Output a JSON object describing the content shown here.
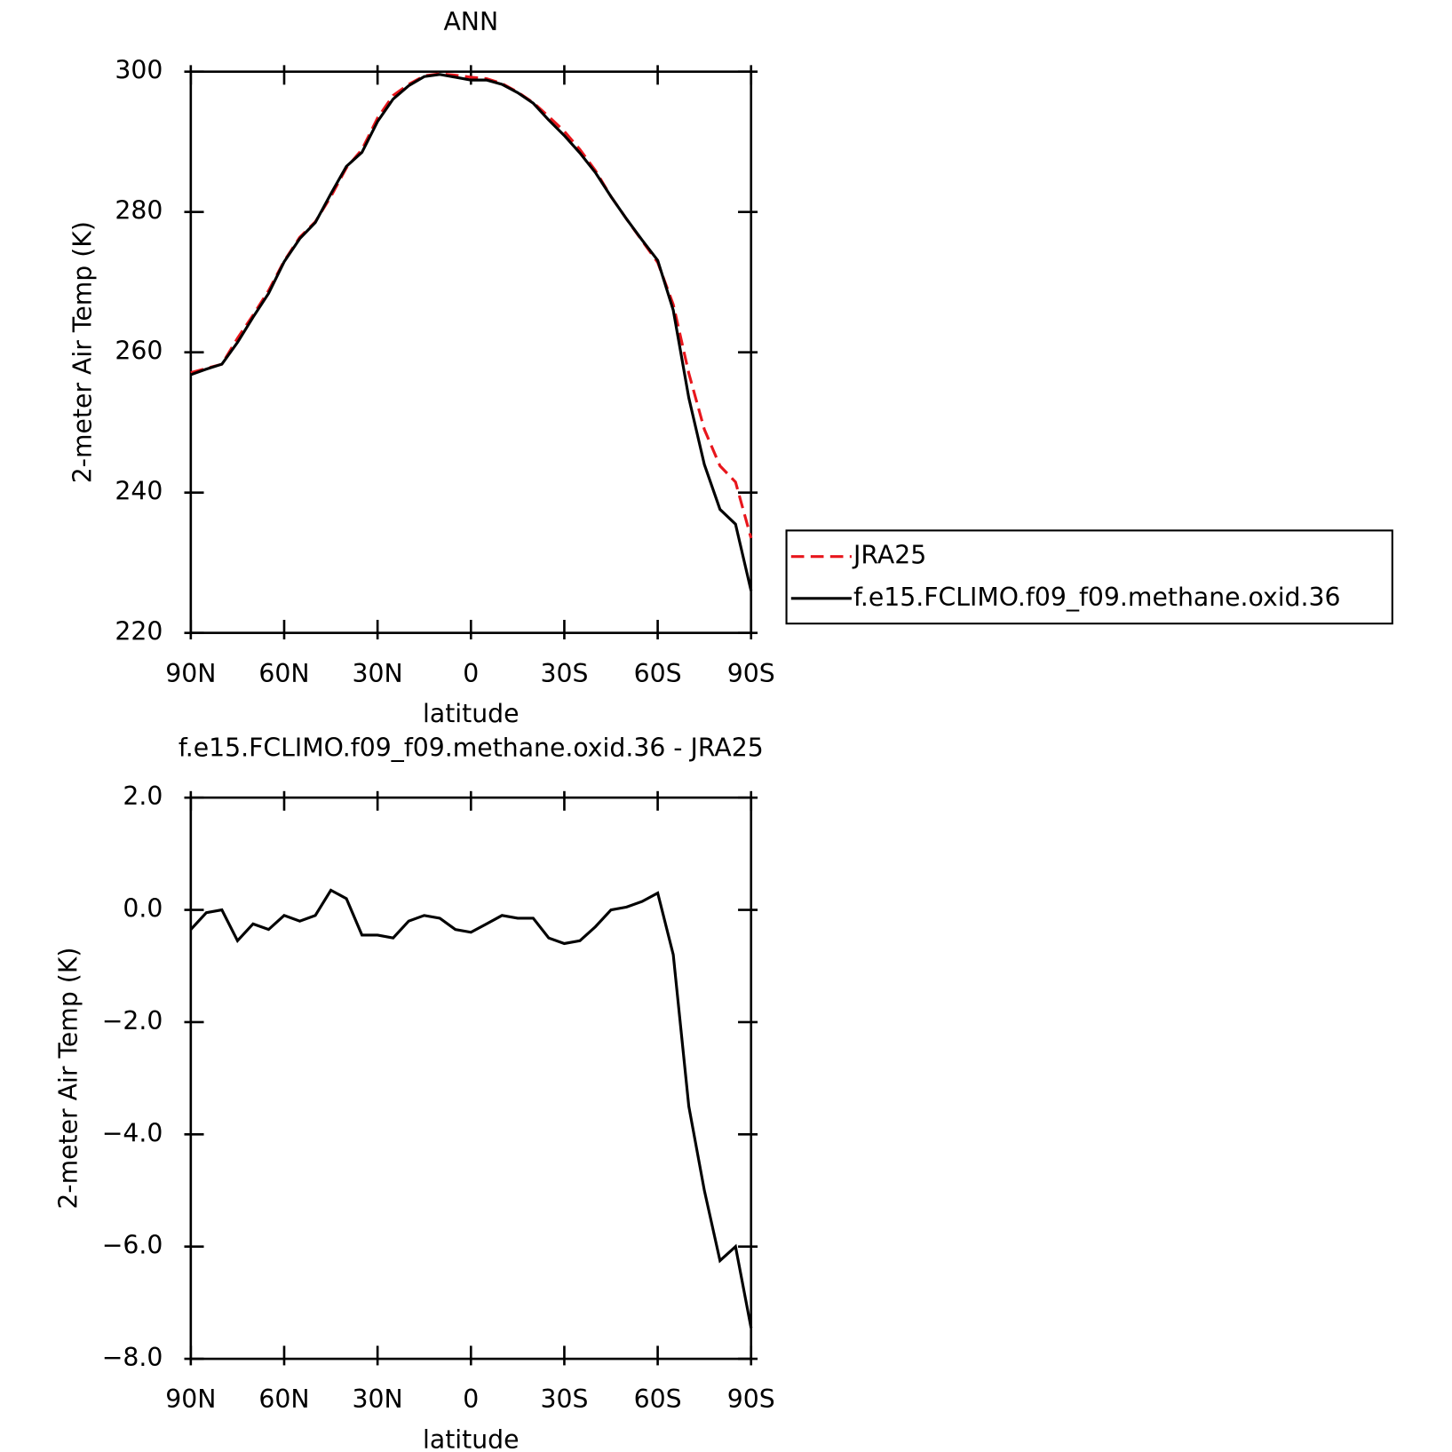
{
  "chart_data": [
    {
      "type": "line",
      "title": "ANN",
      "xlabel": "latitude",
      "ylabel": "2-meter Air Temp (K)",
      "x": [
        90,
        85,
        80,
        75,
        70,
        65,
        60,
        55,
        50,
        45,
        40,
        35,
        30,
        25,
        20,
        15,
        10,
        5,
        0,
        -5,
        -10,
        -15,
        -20,
        -25,
        -30,
        -35,
        -40,
        -45,
        -50,
        -55,
        -60,
        -65,
        -70,
        -75,
        -80,
        -85,
        -90
      ],
      "xlim": [
        90,
        -90
      ],
      "xticks": [
        {
          "value": 90,
          "label": "90N"
        },
        {
          "value": 60,
          "label": "60N"
        },
        {
          "value": 30,
          "label": "30N"
        },
        0,
        {
          "value": -30,
          "label": "30S"
        },
        {
          "value": -60,
          "label": "60S"
        },
        {
          "value": -90,
          "label": "90S"
        }
      ],
      "ylim": [
        220,
        300
      ],
      "yticks": [
        220,
        240,
        260,
        280,
        300
      ],
      "legend": "right",
      "series": [
        {
          "name": "JRA25",
          "color": "#e8161c",
          "line_style": "dashed",
          "values": [
            257.1,
            257.7,
            258.3,
            262.0,
            265.3,
            268.8,
            273.0,
            276.4,
            278.6,
            282.2,
            286.3,
            288.9,
            293.4,
            296.6,
            298.2,
            299.4,
            299.7,
            299.5,
            299.2,
            299.0,
            298.3,
            297.1,
            295.6,
            293.6,
            291.5,
            288.9,
            285.9,
            282.2,
            279.0,
            275.9,
            272.8,
            266.8,
            257.0,
            249.0,
            243.8,
            241.5,
            233.5
          ]
        },
        {
          "name": "f.e15.FCLIMO.f09_f09.methane.oxid.36",
          "color": "#000000",
          "line_style": "solid",
          "values": [
            256.8,
            257.6,
            258.3,
            261.4,
            265.0,
            268.4,
            272.9,
            276.2,
            278.5,
            282.6,
            286.5,
            288.5,
            292.9,
            296.1,
            298.0,
            299.3,
            299.6,
            299.2,
            298.8,
            298.8,
            298.2,
            297.0,
            295.5,
            293.1,
            290.9,
            288.4,
            285.6,
            282.2,
            279.0,
            276.0,
            273.1,
            266.0,
            253.5,
            244.0,
            237.6,
            235.5,
            226.0
          ]
        }
      ]
    },
    {
      "type": "line",
      "title": "f.e15.FCLIMO.f09_f09.methane.oxid.36 - JRA25",
      "xlabel": "latitude",
      "ylabel": "2-meter Air Temp (K)",
      "x": [
        90,
        85,
        80,
        75,
        70,
        65,
        60,
        55,
        50,
        45,
        40,
        35,
        30,
        25,
        20,
        15,
        10,
        5,
        0,
        -5,
        -10,
        -15,
        -20,
        -25,
        -30,
        -35,
        -40,
        -45,
        -50,
        -55,
        -60,
        -65,
        -70,
        -75,
        -80,
        -85,
        -90
      ],
      "xlim": [
        90,
        -90
      ],
      "xticks": [
        {
          "value": 90,
          "label": "90N"
        },
        {
          "value": 60,
          "label": "60N"
        },
        {
          "value": 30,
          "label": "30N"
        },
        0,
        {
          "value": -30,
          "label": "30S"
        },
        {
          "value": -60,
          "label": "60S"
        },
        {
          "value": -90,
          "label": "90S"
        }
      ],
      "ylim": [
        -8,
        2
      ],
      "yticks": [
        {
          "value": -8,
          "label": "−8.0"
        },
        {
          "value": -6,
          "label": "−6.0"
        },
        {
          "value": -4,
          "label": "−4.0"
        },
        {
          "value": -2,
          "label": "−2.0"
        },
        {
          "value": 0,
          "label": "0.0"
        },
        {
          "value": 2,
          "label": "2.0"
        }
      ],
      "color": "#000000",
      "values": [
        -0.35,
        -0.05,
        0.0,
        -0.55,
        -0.25,
        -0.35,
        -0.1,
        -0.2,
        -0.1,
        0.35,
        0.2,
        -0.45,
        -0.45,
        -0.5,
        -0.2,
        -0.1,
        -0.15,
        -0.35,
        -0.4,
        -0.25,
        -0.1,
        -0.15,
        -0.15,
        -0.5,
        -0.6,
        -0.55,
        -0.3,
        0.0,
        0.05,
        0.15,
        0.3,
        -0.8,
        -3.5,
        -5.0,
        -6.25,
        -6.0,
        -7.45
      ]
    }
  ]
}
